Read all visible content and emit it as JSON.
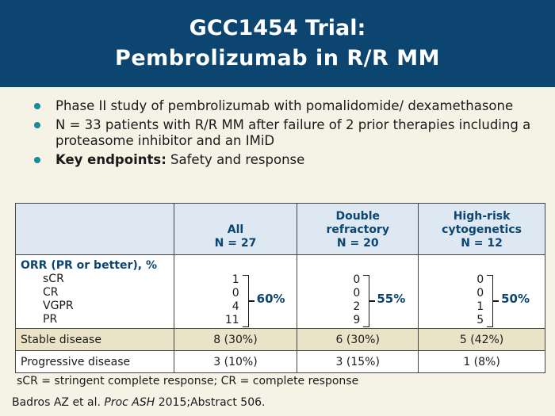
{
  "header": {
    "title_line1": "GCC1454 Trial:",
    "title_line2": "Pembrolizumab in R/R MM"
  },
  "bullets": [
    {
      "bold": "",
      "text": "Phase II study of pembrolizumab with pomalidomide/ dexamethasone"
    },
    {
      "bold": "",
      "text": "N = 33 patients with R/R MM after failure of 2 prior therapies including a proteasome inhibitor and an IMiD"
    },
    {
      "bold": "Key endpoints:",
      "text": " Safety and response"
    }
  ],
  "table": {
    "columns": [
      {
        "line1": "",
        "line2": "All",
        "line3": "N = 27"
      },
      {
        "line1": "Double",
        "line2": "refractory",
        "line3": "N = 20"
      },
      {
        "line1": "High-risk",
        "line2": "cytogenetics",
        "line3": "N = 12"
      }
    ],
    "orr": {
      "label": "ORR (PR or better), %",
      "sub_labels": [
        "sCR",
        "CR",
        "VGPR",
        "PR"
      ],
      "values": [
        {
          "nums": [
            "1",
            "0",
            "4",
            "11"
          ],
          "pct": "60%"
        },
        {
          "nums": [
            "0",
            "0",
            "2",
            "9"
          ],
          "pct": "55%"
        },
        {
          "nums": [
            "0",
            "0",
            "1",
            "5"
          ],
          "pct": "50%"
        }
      ]
    },
    "stable": {
      "label": "Stable disease",
      "values": [
        "8  (30%)",
        "6  (30%)",
        "5 (42%)"
      ]
    },
    "progressive": {
      "label": "Progressive disease",
      "values": [
        "3  (10%)",
        "3  (15%)",
        "1 (8%)"
      ]
    }
  },
  "footnote": "sCR = stringent complete response; CR = complete response",
  "citation": {
    "authors": "Badros AZ et al. ",
    "journal": "Proc ASH",
    "rest": " 2015;Abstract 506."
  }
}
